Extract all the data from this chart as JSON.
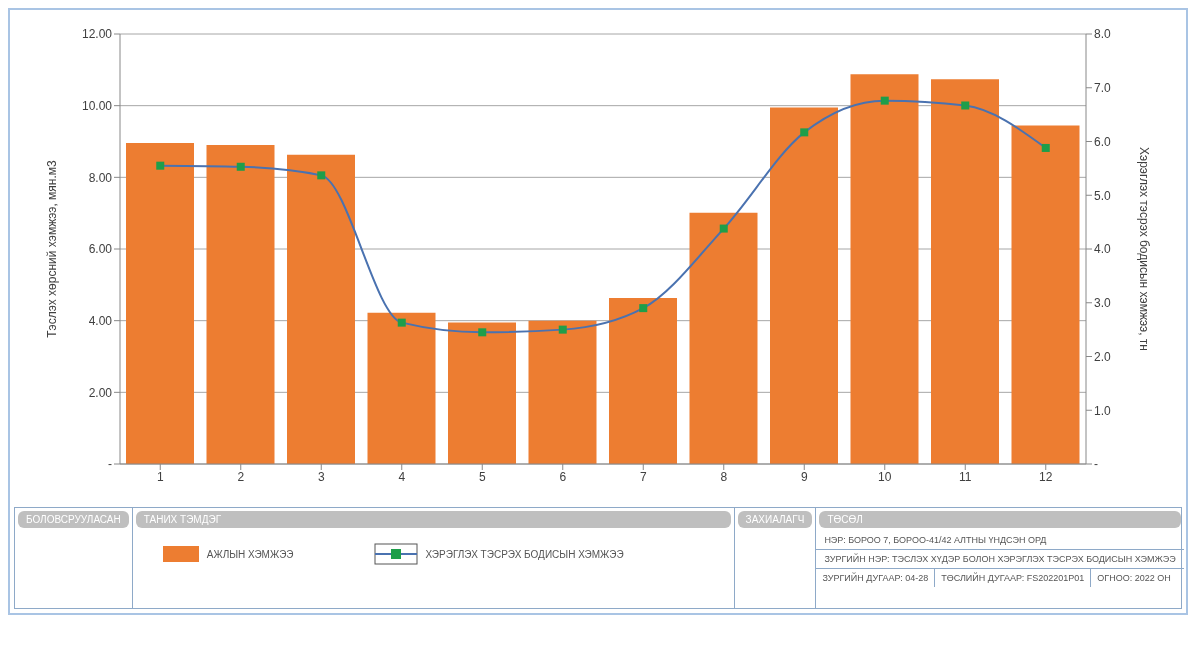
{
  "chart_data": {
    "type": "bar",
    "categories": [
      "1",
      "2",
      "3",
      "4",
      "5",
      "6",
      "7",
      "8",
      "9",
      "10",
      "11",
      "12"
    ],
    "series": [
      {
        "name": "АЖЛЫН ХЭМЖЭЭ",
        "color": "#ed7d31",
        "values": [
          8.96,
          8.9,
          8.63,
          4.22,
          3.95,
          4.0,
          4.63,
          7.01,
          9.95,
          10.88,
          10.74,
          9.45
        ]
      },
      {
        "name": "ХЭРЭГЛЭХ ТЭСРЭХ БОДИСЫН ХЭМЖЭЭ",
        "type": "line",
        "axis": "y2",
        "color": "#4a72b0",
        "colors": [
          "#1e9e4a",
          "#1e9e4a",
          "#1e9e4a",
          "#1e9e4a",
          "#1e9e4a",
          "#1e9e4a",
          "#1e9e4a",
          "#1e9e4a",
          "#1e9e4a",
          "#1e9e4a",
          "#1e9e4a",
          "#1e9e4a"
        ],
        "marker": "square",
        "values": [
          5.55,
          5.53,
          5.37,
          2.63,
          2.45,
          2.5,
          2.9,
          4.38,
          6.17,
          6.76,
          6.67,
          5.88
        ]
      }
    ],
    "ylabel": "Тэслэх хөрсний хэмжээ, мян.м3",
    "y2label": "Хэрэглэх тэсрэх бодисын хэмжээ, тн",
    "ylim": [
      0,
      12
    ],
    "yticks": [
      {
        "value": 0,
        "label": "-"
      },
      {
        "value": 2,
        "label": "2.00"
      },
      {
        "value": 4,
        "label": "4.00"
      },
      {
        "value": 6,
        "label": "6.00"
      },
      {
        "value": 8,
        "label": "8.00"
      },
      {
        "value": 10,
        "label": "10.00"
      },
      {
        "value": 12,
        "label": "12.00"
      }
    ],
    "y2lim": [
      0,
      8
    ],
    "y2ticks": [
      {
        "value": 0,
        "label": "-"
      },
      {
        "value": 1,
        "label": "1.0"
      },
      {
        "value": 2,
        "label": "2.0"
      },
      {
        "value": 3,
        "label": "3.0"
      },
      {
        "value": 4,
        "label": "4.0"
      },
      {
        "value": 5,
        "label": "5.0"
      },
      {
        "value": 6,
        "label": "6.0"
      },
      {
        "value": 7,
        "label": "7.0"
      },
      {
        "value": 8,
        "label": "8.0"
      }
    ],
    "grid": "y",
    "legend": "bottom",
    "legend_title": "ТАНИХ ТЭМДЭГ",
    "annotations": [
      "БОЛОВСРУУЛАСАН",
      "ЗАХИАЛАГЧ",
      "ТӨСӨЛ",
      "НЭР: БОРОО 7, БОРОО-41/42 АЛТНЫ ҮНДСЭН ОРД",
      "ЗУРГИЙН НЭР: ТЭСЛЭХ ХҮДЭР БОЛОН ХЭРЭГЛЭХ ТЭСРЭХ БОДИСЫН ХЭМЖЭЭ",
      "ЗУРГИЙН ДУГААР: 04-28",
      "ТӨСЛИЙН ДУГААР: FS202201P01",
      "ОГНОО: 2022 ОН"
    ]
  }
}
